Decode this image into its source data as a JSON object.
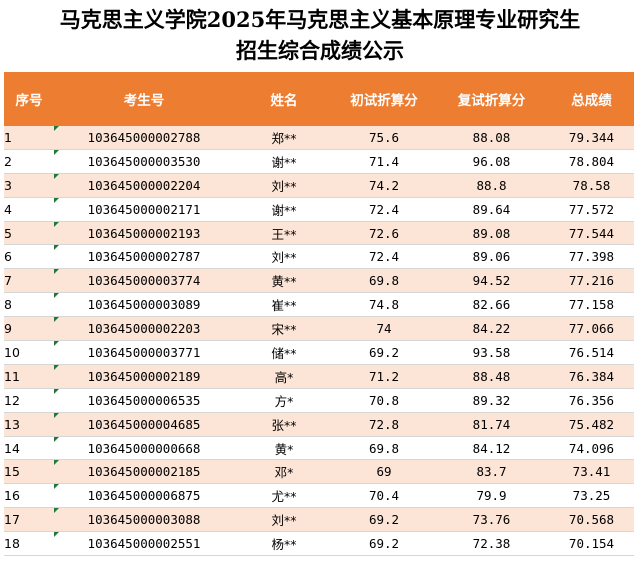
{
  "title": {
    "line1": "马克思主义学院2025年马克思主义基本原理专业研究生",
    "line2": "招生综合成绩公示"
  },
  "colors": {
    "header_bg": "#ed7d31",
    "header_text": "#ffffff",
    "row_band": "#fce4d6",
    "row_plain": "#ffffff",
    "note_marker": "#1f7a3a"
  },
  "columns": [
    "序号",
    "考生号",
    "姓名",
    "初试折算分",
    "复试折算分",
    "总成绩"
  ],
  "rows": [
    {
      "rank": "1",
      "id": "103645000002788",
      "name": "郑**",
      "initial": "75.6",
      "retest": "88.08",
      "total": "79.344"
    },
    {
      "rank": "2",
      "id": "103645000003530",
      "name": "谢**",
      "initial": "71.4",
      "retest": "96.08",
      "total": "78.804"
    },
    {
      "rank": "3",
      "id": "103645000002204",
      "name": "刘**",
      "initial": "74.2",
      "retest": "88.8",
      "total": "78.58"
    },
    {
      "rank": "4",
      "id": "103645000002171",
      "name": "谢**",
      "initial": "72.4",
      "retest": "89.64",
      "total": "77.572"
    },
    {
      "rank": "5",
      "id": "103645000002193",
      "name": "王**",
      "initial": "72.6",
      "retest": "89.08",
      "total": "77.544"
    },
    {
      "rank": "6",
      "id": "103645000002787",
      "name": "刘**",
      "initial": "72.4",
      "retest": "89.06",
      "total": "77.398"
    },
    {
      "rank": "7",
      "id": "103645000003774",
      "name": "黄**",
      "initial": "69.8",
      "retest": "94.52",
      "total": "77.216"
    },
    {
      "rank": "8",
      "id": "103645000003089",
      "name": "崔**",
      "initial": "74.8",
      "retest": "82.66",
      "total": "77.158"
    },
    {
      "rank": "9",
      "id": "103645000002203",
      "name": "宋**",
      "initial": "74",
      "retest": "84.22",
      "total": "77.066"
    },
    {
      "rank": "10",
      "id": "103645000003771",
      "name": "储**",
      "initial": "69.2",
      "retest": "93.58",
      "total": "76.514"
    },
    {
      "rank": "11",
      "id": "103645000002189",
      "name": "高*",
      "initial": "71.2",
      "retest": "88.48",
      "total": "76.384"
    },
    {
      "rank": "12",
      "id": "103645000006535",
      "name": "方*",
      "initial": "70.8",
      "retest": "89.32",
      "total": "76.356"
    },
    {
      "rank": "13",
      "id": "103645000004685",
      "name": "张**",
      "initial": "72.8",
      "retest": "81.74",
      "total": "75.482"
    },
    {
      "rank": "14",
      "id": "103645000000668",
      "name": "黄*",
      "initial": "69.8",
      "retest": "84.12",
      "total": "74.096"
    },
    {
      "rank": "15",
      "id": "103645000002185",
      "name": "邓*",
      "initial": "69",
      "retest": "83.7",
      "total": "73.41"
    },
    {
      "rank": "16",
      "id": "103645000006875",
      "name": "尤**",
      "initial": "70.4",
      "retest": "79.9",
      "total": "73.25"
    },
    {
      "rank": "17",
      "id": "103645000003088",
      "name": "刘**",
      "initial": "69.2",
      "retest": "73.76",
      "total": "70.568"
    },
    {
      "rank": "18",
      "id": "103645000002551",
      "name": "杨**",
      "initial": "69.2",
      "retest": "72.38",
      "total": "70.154"
    }
  ]
}
